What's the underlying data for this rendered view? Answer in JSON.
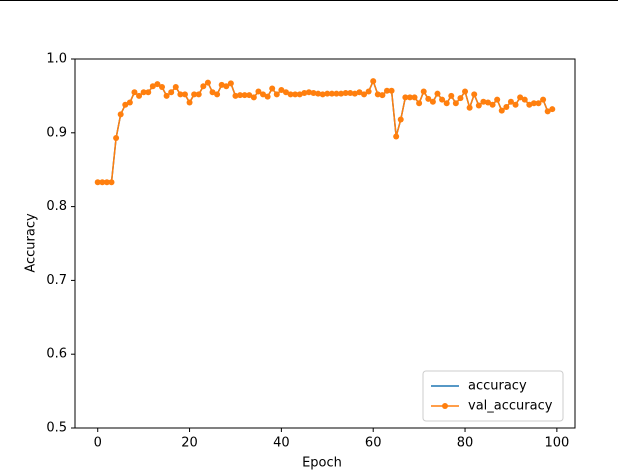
{
  "chart_data": {
    "type": "line",
    "xlabel": "Epoch",
    "ylabel": "Accuracy",
    "x": [
      0,
      1,
      2,
      3,
      4,
      5,
      6,
      7,
      8,
      9,
      10,
      11,
      12,
      13,
      14,
      15,
      16,
      17,
      18,
      19,
      20,
      21,
      22,
      23,
      24,
      25,
      26,
      27,
      28,
      29,
      30,
      31,
      32,
      33,
      34,
      35,
      36,
      37,
      38,
      39,
      40,
      41,
      42,
      43,
      44,
      45,
      46,
      47,
      48,
      49,
      50,
      51,
      52,
      53,
      54,
      55,
      56,
      57,
      58,
      59,
      60,
      61,
      62,
      63,
      64,
      65,
      66,
      67,
      68,
      69,
      70,
      71,
      72,
      73,
      74,
      75,
      76,
      77,
      78,
      79,
      80,
      81,
      82,
      83,
      84,
      85,
      86,
      87,
      88,
      89,
      90,
      91,
      92,
      93,
      94,
      95,
      96,
      97,
      98,
      99
    ],
    "series": [
      {
        "name": "accuracy",
        "color": "#1f77b4",
        "marker": false,
        "values": [
          0.833,
          0.833,
          0.833,
          0.833,
          0.893,
          0.925,
          0.938,
          0.941,
          0.955,
          0.95,
          0.955,
          0.955,
          0.963,
          0.966,
          0.962,
          0.95,
          0.955,
          0.962,
          0.952,
          0.952,
          0.941,
          0.952,
          0.952,
          0.963,
          0.968,
          0.955,
          0.952,
          0.965,
          0.963,
          0.967,
          0.95,
          0.951,
          0.951,
          0.951,
          0.948,
          0.956,
          0.952,
          0.949,
          0.96,
          0.952,
          0.958,
          0.955,
          0.952,
          0.952,
          0.952,
          0.954,
          0.955,
          0.954,
          0.953,
          0.952,
          0.953,
          0.953,
          0.953,
          0.953,
          0.954,
          0.954,
          0.953,
          0.955,
          0.952,
          0.956,
          0.97,
          0.952,
          0.951,
          0.957,
          0.957,
          0.895,
          0.918,
          0.948,
          0.948,
          0.948,
          0.94,
          0.956,
          0.946,
          0.942,
          0.953,
          0.945,
          0.94,
          0.95,
          0.94,
          0.947,
          0.956,
          0.934,
          0.952,
          0.937,
          0.942,
          0.941,
          0.938,
          0.945,
          0.93,
          0.935,
          0.942,
          0.938,
          0.948,
          0.945,
          0.938,
          0.94,
          0.94,
          0.945,
          0.929,
          0.932
        ]
      },
      {
        "name": "val_accuracy",
        "color": "#ff7f0e",
        "marker": true,
        "values": [
          0.833,
          0.833,
          0.833,
          0.833,
          0.893,
          0.925,
          0.938,
          0.941,
          0.955,
          0.95,
          0.955,
          0.955,
          0.963,
          0.966,
          0.962,
          0.95,
          0.955,
          0.962,
          0.952,
          0.952,
          0.941,
          0.952,
          0.952,
          0.963,
          0.968,
          0.955,
          0.952,
          0.965,
          0.963,
          0.967,
          0.95,
          0.951,
          0.951,
          0.951,
          0.948,
          0.956,
          0.952,
          0.949,
          0.96,
          0.952,
          0.958,
          0.955,
          0.952,
          0.952,
          0.952,
          0.954,
          0.955,
          0.954,
          0.953,
          0.952,
          0.953,
          0.953,
          0.953,
          0.953,
          0.954,
          0.954,
          0.953,
          0.955,
          0.952,
          0.956,
          0.97,
          0.952,
          0.951,
          0.957,
          0.957,
          0.895,
          0.918,
          0.948,
          0.948,
          0.948,
          0.94,
          0.956,
          0.946,
          0.942,
          0.953,
          0.945,
          0.94,
          0.95,
          0.94,
          0.947,
          0.956,
          0.934,
          0.952,
          0.937,
          0.942,
          0.941,
          0.938,
          0.945,
          0.93,
          0.935,
          0.942,
          0.938,
          0.948,
          0.945,
          0.938,
          0.94,
          0.94,
          0.945,
          0.929,
          0.932
        ]
      }
    ],
    "xlim": [
      -4.95,
      103.95
    ],
    "xticks": [
      0,
      20,
      40,
      60,
      80,
      100
    ],
    "ylim": [
      0.5,
      1.0
    ],
    "yticks": [
      0.5,
      0.6,
      0.7,
      0.8,
      0.9,
      {
        "value": 1.0,
        "label": "1.0"
      }
    ],
    "legend": "lower right",
    "grid": false
  }
}
